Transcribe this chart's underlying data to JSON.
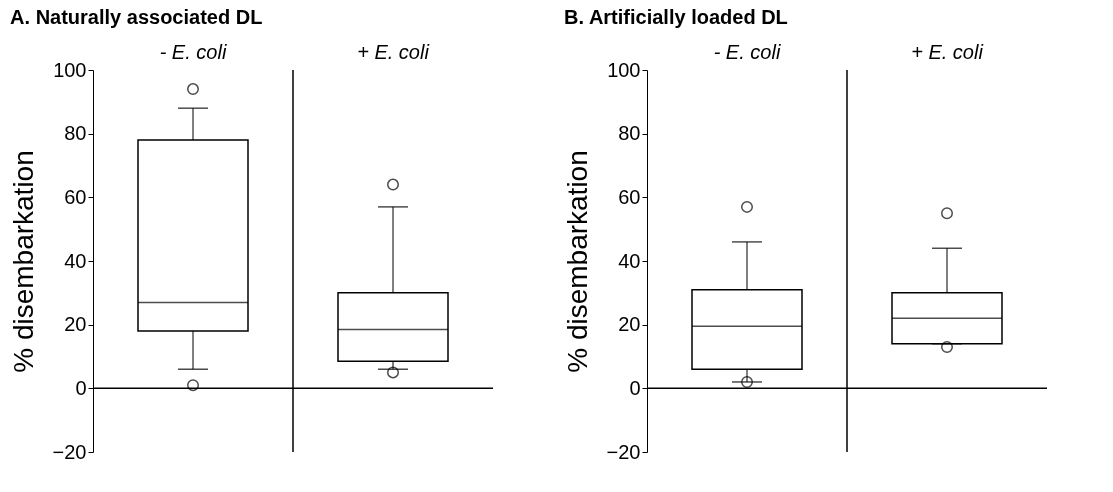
{
  "chart_data": [
    {
      "type": "box",
      "title": "A. Naturally associated DL",
      "ylabel": "% disembarkation",
      "categories": [
        "- E. coli",
        "+ E. coli"
      ],
      "ylim": [
        -20,
        100
      ],
      "yticks": [
        -20,
        0,
        20,
        40,
        60,
        80,
        100
      ],
      "ref_lines": [
        {
          "axis": "y",
          "value": 0
        }
      ],
      "boxes": [
        {
          "low": 6,
          "q1": 18,
          "median": 27,
          "q3": 78,
          "high": 88,
          "outliers": [
            94,
            1
          ]
        },
        {
          "low": 6,
          "q1": 8.5,
          "median": 18.5,
          "q3": 30,
          "high": 57,
          "outliers": [
            64,
            5
          ]
        }
      ]
    },
    {
      "type": "box",
      "title": "B. Artificially loaded DL",
      "ylabel": "% disembarkation",
      "categories": [
        "- E. coli",
        "+ E. coli"
      ],
      "ylim": [
        -20,
        100
      ],
      "yticks": [
        -20,
        0,
        20,
        40,
        60,
        80,
        100
      ],
      "ref_lines": [
        {
          "axis": "y",
          "value": 0
        }
      ],
      "boxes": [
        {
          "low": 2,
          "q1": 6,
          "median": 19.5,
          "q3": 31,
          "high": 46,
          "outliers": [
            57,
            2
          ]
        },
        {
          "low": 14,
          "q1": 14,
          "median": 22,
          "q3": 30,
          "high": 44,
          "outliers": [
            55,
            13
          ]
        }
      ]
    }
  ]
}
